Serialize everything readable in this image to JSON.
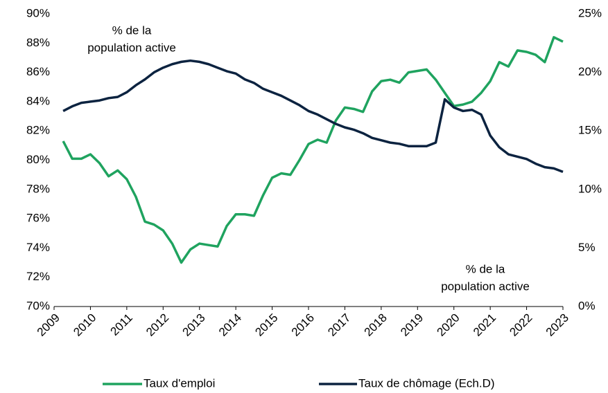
{
  "chart_data": {
    "type": "line",
    "x": [
      2009.25,
      2009.5,
      2009.75,
      2010,
      2010.25,
      2010.5,
      2010.75,
      2011,
      2011.25,
      2011.5,
      2011.75,
      2012,
      2012.25,
      2012.5,
      2012.75,
      2013,
      2013.25,
      2013.5,
      2013.75,
      2014,
      2014.25,
      2014.5,
      2014.75,
      2015,
      2015.25,
      2015.5,
      2015.75,
      2016,
      2016.25,
      2016.5,
      2016.75,
      2017,
      2017.25,
      2017.5,
      2017.75,
      2018,
      2018.25,
      2018.5,
      2018.75,
      2019,
      2019.25,
      2019.5,
      2019.75,
      2020,
      2020.25,
      2020.5,
      2020.75,
      2021,
      2021.25,
      2021.5,
      2021.75,
      2022,
      2022.25,
      2022.5,
      2022.75,
      2023
    ],
    "series": [
      {
        "name": "Taux d'emploi",
        "color": "#1fa35f",
        "values": [
          81.3,
          80.1,
          80.1,
          80.4,
          79.8,
          78.9,
          79.3,
          78.7,
          77.5,
          75.8,
          75.6,
          75.2,
          74.3,
          73.0,
          73.9,
          74.3,
          74.2,
          74.1,
          75.5,
          76.3,
          76.3,
          76.2,
          77.6,
          78.8,
          79.1,
          79.0,
          80.0,
          81.1,
          81.4,
          81.2,
          82.7,
          83.6,
          83.5,
          83.3,
          84.7,
          85.4,
          85.5,
          85.3,
          86.0,
          86.1,
          86.2,
          85.5,
          84.6,
          83.7,
          83.8,
          84.0,
          84.6,
          85.4,
          86.7,
          86.4,
          87.5,
          87.4,
          87.2,
          86.7,
          88.4,
          88.1
        ]
      },
      {
        "name": "Taux de chômage (Ech.D)",
        "color": "#0c2340",
        "axis": "y2",
        "values": [
          16.7,
          17.1,
          17.4,
          17.5,
          17.6,
          17.8,
          17.9,
          18.3,
          18.9,
          19.4,
          20.0,
          20.4,
          20.7,
          20.9,
          21.0,
          20.9,
          20.7,
          20.4,
          20.1,
          19.9,
          19.4,
          19.1,
          18.6,
          18.3,
          18.0,
          17.6,
          17.2,
          16.7,
          16.4,
          16.0,
          15.6,
          15.3,
          15.1,
          14.8,
          14.4,
          14.2,
          14.0,
          13.9,
          13.7,
          13.7,
          13.7,
          14.0,
          17.7,
          17.0,
          16.7,
          16.8,
          16.4,
          14.6,
          13.6,
          13.0,
          12.8,
          12.6,
          12.2,
          11.9,
          11.8,
          11.5
        ]
      }
    ],
    "xlim": [
      2009,
      2023
    ],
    "xticks": [
      2009,
      2010,
      2011,
      2012,
      2013,
      2014,
      2015,
      2016,
      2017,
      2018,
      2019,
      2020,
      2021,
      2022,
      2023
    ],
    "ylim": [
      70,
      90
    ],
    "yticks": [
      {
        "value": 70,
        "label": "70%"
      },
      {
        "value": 72,
        "label": "72%"
      },
      {
        "value": 74,
        "label": "74%"
      },
      {
        "value": 76,
        "label": "76%"
      },
      {
        "value": 78,
        "label": "78%"
      },
      {
        "value": 80,
        "label": "80%"
      },
      {
        "value": 82,
        "label": "82%"
      },
      {
        "value": 84,
        "label": "84%"
      },
      {
        "value": 86,
        "label": "86%"
      },
      {
        "value": 88,
        "label": "88%"
      },
      {
        "value": 90,
        "label": "90%"
      }
    ],
    "y2lim": [
      0,
      25
    ],
    "y2ticks": [
      {
        "value": 0,
        "label": "0%"
      },
      {
        "value": 5,
        "label": "5%"
      },
      {
        "value": 10,
        "label": "10%"
      },
      {
        "value": 15,
        "label": "15%"
      },
      {
        "value": 20,
        "label": "20%"
      },
      {
        "value": 25,
        "label": "25%"
      }
    ],
    "annotations": [
      {
        "lines": [
          "% de la",
          "population active"
        ]
      },
      {
        "lines": [
          "% de la",
          "population active"
        ]
      }
    ],
    "legend": "bottom"
  }
}
